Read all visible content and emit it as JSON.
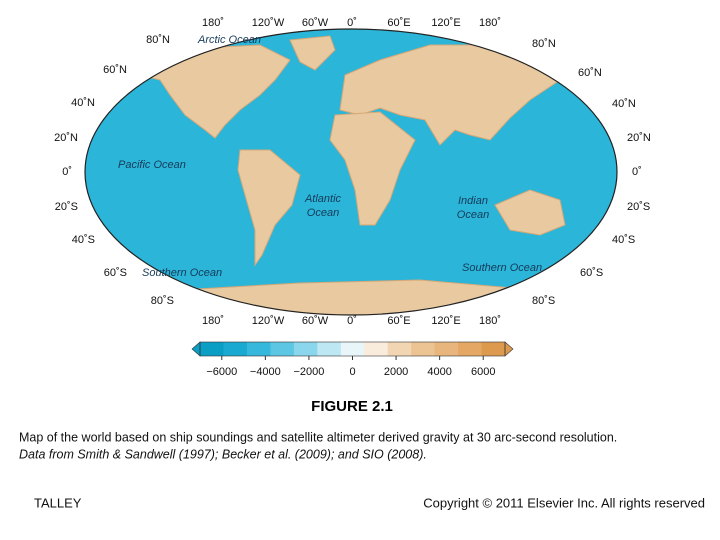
{
  "map": {
    "longitude_labels": [
      "180˚",
      "120˚W",
      "60˚W",
      "0˚",
      "60˚E",
      "120˚E",
      "180˚"
    ],
    "latitude_labels": [
      "80˚N",
      "60˚N",
      "40˚N",
      "20˚N",
      "0˚",
      "20˚S",
      "40˚S",
      "60˚S",
      "80˚S"
    ],
    "ocean_labels": [
      [
        "Arctic Ocean"
      ],
      [
        "Pacific Ocean"
      ],
      [
        "Atlantic",
        "Ocean"
      ],
      [
        "Indian",
        "Ocean"
      ],
      [
        "Southern Ocean"
      ],
      [
        "Southern Ocean"
      ]
    ]
  },
  "colorbar": {
    "range": [
      -7000,
      7000
    ],
    "colors": [
      "#0a9ec4",
      "#1aa9d0",
      "#35b8dc",
      "#5cc6e3",
      "#8ad6ec",
      "#bde7f3",
      "#e8f6fa",
      "#f9ecdc",
      "#f2d6b3",
      "#ecc494",
      "#e8b57c",
      "#e4a864",
      "#dd9a4e"
    ],
    "ticks": [
      {
        "value": -6000,
        "label": "−6000"
      },
      {
        "value": -4000,
        "label": "−4000"
      },
      {
        "value": -2000,
        "label": "−2000"
      },
      0,
      2000,
      4000,
      6000
    ]
  },
  "figure": {
    "title": "FIGURE 2.1",
    "caption": "Map of the world based on ship soundings and satellite altimeter derived gravity at 30 arc-second resolution.",
    "source": "Data from Smith & Sandwell (1997); Becker et al. (2009); and SIO (2008)."
  },
  "footer": {
    "left": "TALLEY",
    "right": "Copyright © 2011 Elsevier Inc. All rights reserved"
  }
}
